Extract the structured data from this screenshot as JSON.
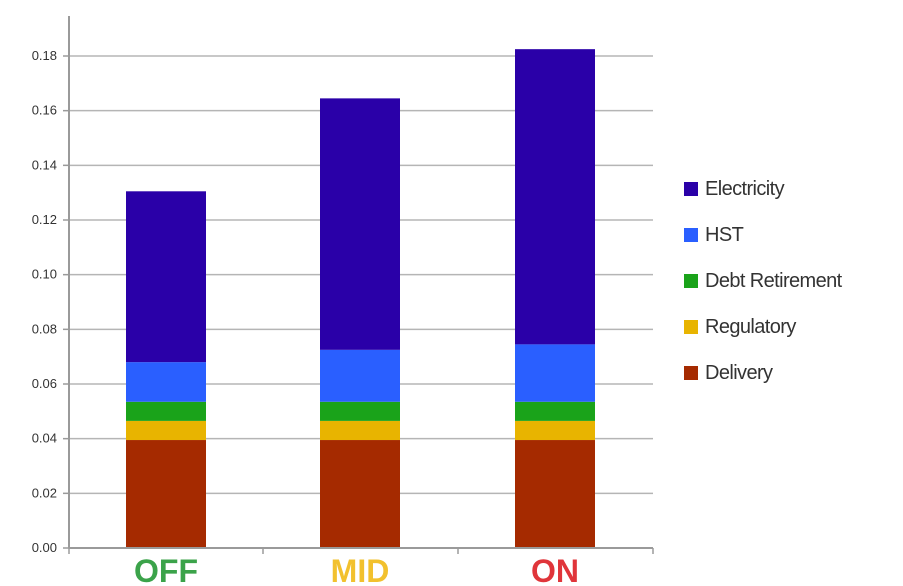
{
  "chart_data": {
    "type": "bar",
    "stacked": true,
    "categories": [
      "OFF",
      "MID",
      "ON"
    ],
    "category_colors": [
      "#3ba34a",
      "#f2c12e",
      "#e0353a"
    ],
    "ylim": [
      0,
      0.19
    ],
    "yticks": [
      "0.00",
      "0.02",
      "0.04",
      "0.06",
      "0.08",
      "0.10",
      "0.12",
      "0.14",
      "0.16",
      "0.18"
    ],
    "grid": true,
    "legend_position": "right",
    "series": [
      {
        "name": "Delivery",
        "color": "#a52a00",
        "values": [
          0.0395,
          0.0395,
          0.0395
        ]
      },
      {
        "name": "Regulatory",
        "color": "#e8b400",
        "values": [
          0.007,
          0.007,
          0.007
        ]
      },
      {
        "name": "Debt Retirement",
        "color": "#1aa31a",
        "values": [
          0.007,
          0.007,
          0.007
        ]
      },
      {
        "name": "HST",
        "color": "#2a5fff",
        "values": [
          0.0145,
          0.019,
          0.021
        ]
      },
      {
        "name": "Electricity",
        "color": "#2a00a8",
        "values": [
          0.0625,
          0.092,
          0.108
        ]
      }
    ],
    "legend_order": [
      "Electricity",
      "HST",
      "Debt Retirement",
      "Regulatory",
      "Delivery"
    ]
  }
}
